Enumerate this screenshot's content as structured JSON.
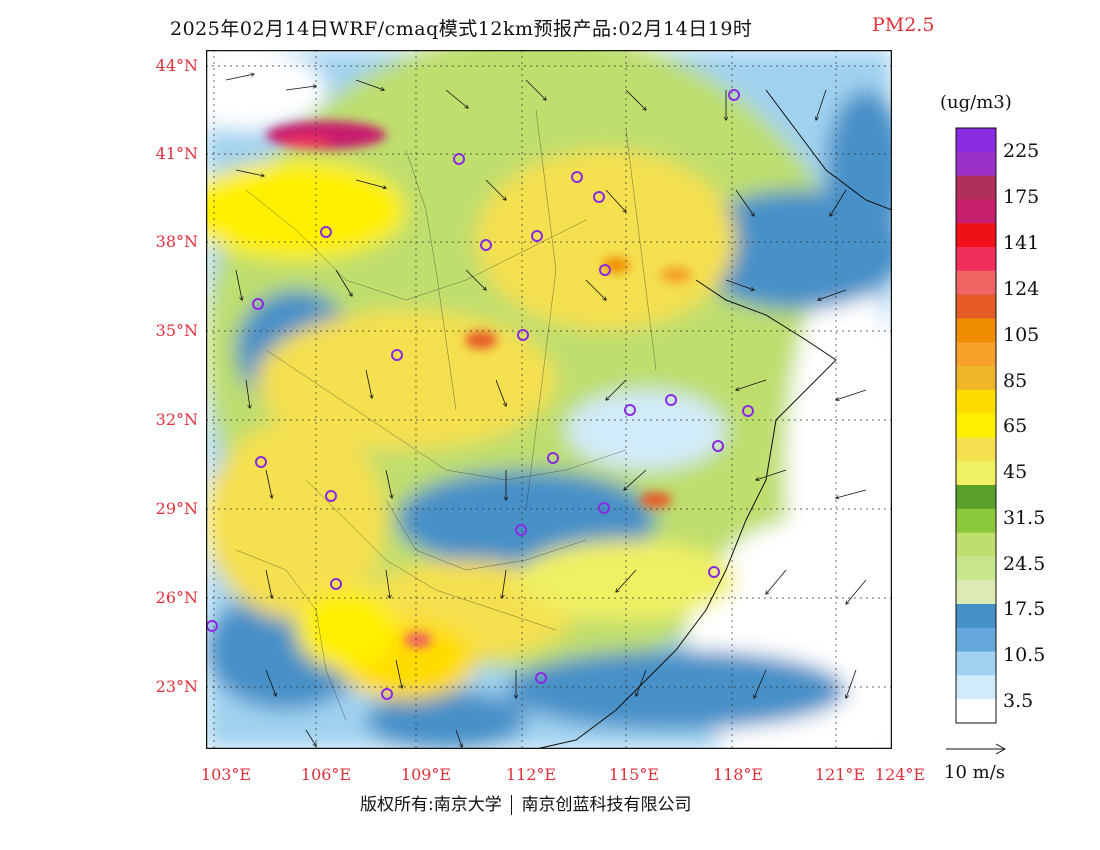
{
  "title": {
    "main": "2025年02月14日WRF/cmaq模式12km预报产品:02月14日19时",
    "variable": "PM2.5",
    "variable_color": "#e0303a"
  },
  "latitude_labels": [
    "44°N",
    "41°N",
    "38°N",
    "35°N",
    "32°N",
    "29°N",
    "26°N",
    "23°N"
  ],
  "longitude_labels": [
    "103°E",
    "106°E",
    "109°E",
    "112°E",
    "115°E",
    "118°E",
    "121°E",
    "124°E"
  ],
  "legend": {
    "unit": "(ug/m3)",
    "labels": [
      "225",
      "175",
      "141",
      "124",
      "105",
      "85",
      "65",
      "45",
      "31.5",
      "24.5",
      "17.5",
      "10.5",
      "3.5"
    ],
    "colors": [
      "#8a2be2",
      "#9b30c8",
      "#b0305a",
      "#c81e6e",
      "#f01018",
      "#f0305a",
      "#f06464",
      "#e65a28",
      "#f08c00",
      "#f5a028",
      "#f0b428",
      "#ffdc00",
      "#fff000",
      "#f5e050",
      "#f0f064",
      "#5aa028",
      "#8cc83c",
      "#bede6e",
      "#c8e68c",
      "#dcebb4",
      "#4690c8",
      "#64a8dc",
      "#a0d2f0",
      "#d2ebfa",
      "#ffffff"
    ]
  },
  "wind": {
    "reference_label": "10 m/s"
  },
  "copyright": {
    "left": "版权所有:南京大学",
    "right": "南京创蓝科技有限公司"
  },
  "city_marker_color": "#8a2be2"
}
